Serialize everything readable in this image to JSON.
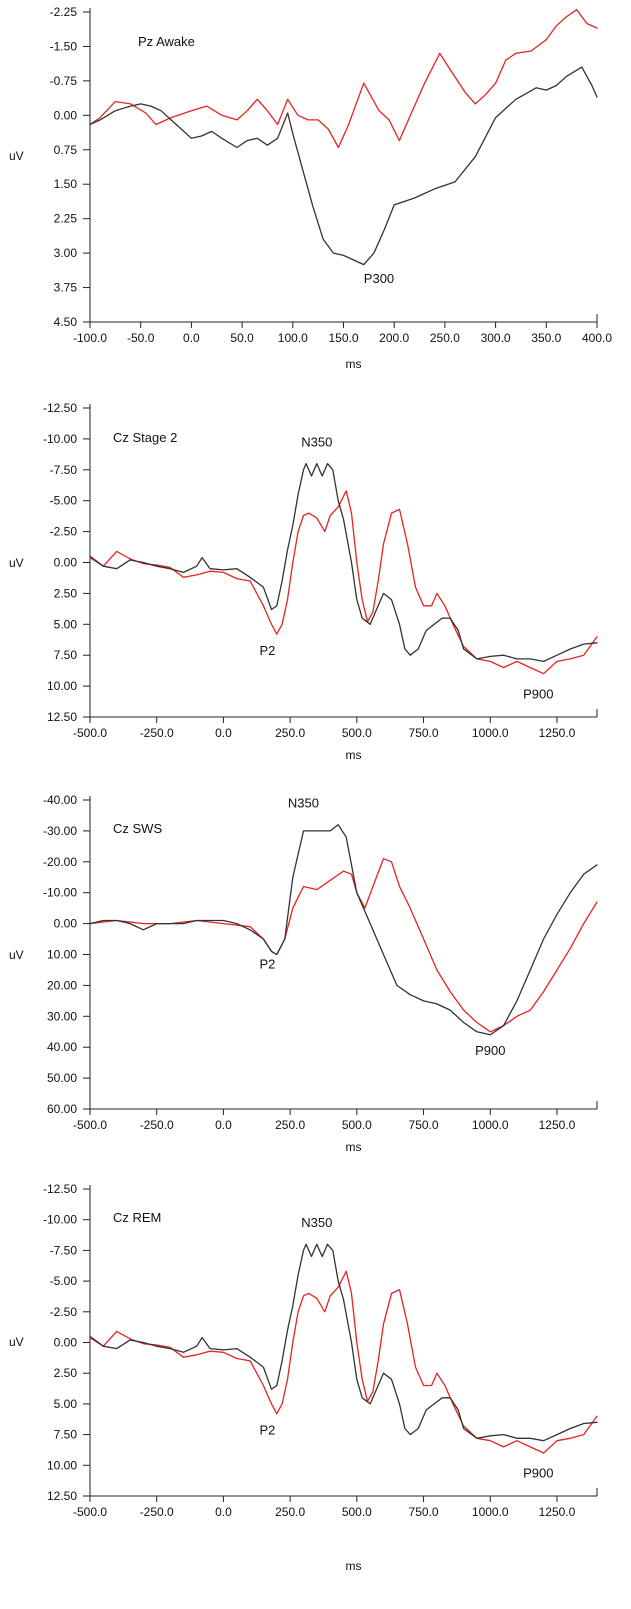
{
  "chart_data": [
    {
      "type": "line",
      "title": "Pz Awake",
      "xlabel": "ms",
      "ylabel": "uV",
      "xlim": [
        -100,
        400
      ],
      "ylim": [
        -2.25,
        4.5
      ],
      "y_inverted": true,
      "grid": false,
      "xticks": [
        -100,
        -50,
        0,
        50,
        100,
        150,
        200,
        250,
        300,
        350,
        400
      ],
      "xtick_labels": [
        "-100.0",
        "-50.0",
        "0.0",
        "50.0",
        "100.0",
        "150.0",
        "200.0",
        "250.0",
        "300.0",
        "350.0",
        "400.0"
      ],
      "yticks": [
        -2.25,
        -1.5,
        -0.75,
        0,
        0.75,
        1.5,
        2.25,
        3,
        3.75,
        4.5
      ],
      "ytick_labels": [
        "-2.25",
        "-1.50",
        "-0.75",
        "0.00",
        "0.75",
        "1.50",
        "2.25",
        "3.00",
        "3.75",
        "4.50"
      ],
      "annotations": [
        {
          "text": "P300",
          "x": 185,
          "y": 3.65
        }
      ],
      "series": [
        {
          "color": "#e8231f",
          "x": [
            -100,
            -90,
            -75,
            -60,
            -45,
            -35,
            -20,
            0,
            15,
            30,
            45,
            55,
            65,
            75,
            85,
            95,
            105,
            115,
            125,
            135,
            145,
            155,
            170,
            185,
            195,
            205,
            215,
            230,
            245,
            255,
            270,
            280,
            290,
            300,
            310,
            320,
            335,
            350,
            360,
            370,
            380,
            390,
            400
          ],
          "y": [
            0.2,
            0.05,
            -0.3,
            -0.25,
            -0.05,
            0.2,
            0.05,
            -0.1,
            -0.2,
            0.0,
            0.1,
            -0.1,
            -0.35,
            -0.1,
            0.2,
            -0.35,
            0.0,
            0.1,
            0.1,
            0.3,
            0.7,
            0.2,
            -0.7,
            -0.1,
            0.1,
            0.55,
            0.05,
            -0.7,
            -1.35,
            -1.0,
            -0.5,
            -0.25,
            -0.45,
            -0.7,
            -1.2,
            -1.35,
            -1.4,
            -1.65,
            -1.95,
            -2.15,
            -2.3,
            -2.0,
            -1.9
          ]
        },
        {
          "color": "#333333",
          "x": [
            -100,
            -90,
            -75,
            -60,
            -50,
            -40,
            -30,
            -15,
            0,
            10,
            20,
            30,
            45,
            55,
            65,
            75,
            85,
            95,
            100,
            110,
            120,
            130,
            140,
            150,
            160,
            170,
            180,
            190,
            200,
            220,
            240,
            260,
            280,
            300,
            320,
            340,
            350,
            360,
            370,
            385,
            395,
            400
          ],
          "y": [
            0.2,
            0.1,
            -0.1,
            -0.2,
            -0.25,
            -0.2,
            -0.1,
            0.2,
            0.5,
            0.45,
            0.35,
            0.5,
            0.7,
            0.55,
            0.5,
            0.65,
            0.5,
            -0.05,
            0.4,
            1.2,
            2.0,
            2.7,
            3.0,
            3.05,
            3.15,
            3.25,
            3.0,
            2.5,
            1.95,
            1.8,
            1.6,
            1.45,
            0.9,
            0.05,
            -0.35,
            -0.6,
            -0.55,
            -0.65,
            -0.85,
            -1.05,
            -0.65,
            -0.4
          ]
        }
      ]
    },
    {
      "type": "line",
      "title": "Cz Stage 2",
      "xlabel": "ms",
      "ylabel": "uV",
      "xlim": [
        -500,
        1400
      ],
      "ylim": [
        -12.5,
        12.5
      ],
      "y_inverted": true,
      "grid": false,
      "xticks": [
        -500,
        -250,
        0,
        250,
        500,
        750,
        1000,
        1250
      ],
      "xtick_labels": [
        "-500.0",
        "-250.0",
        "0.0",
        "250.0",
        "500.0",
        "750.0",
        "1000.0",
        "1250.0"
      ],
      "yticks": [
        -12.5,
        -10,
        -7.5,
        -5,
        -2.5,
        0,
        2.5,
        5,
        7.5,
        10,
        12.5
      ],
      "ytick_labels": [
        "-12.50",
        "-10.00",
        "-7.50",
        "-5.00",
        "-2.50",
        "0.00",
        "2.50",
        "5.00",
        "7.50",
        "10.00",
        "12.50"
      ],
      "annotations": [
        {
          "text": "N350",
          "x": 350,
          "y": -9.4
        },
        {
          "text": "P2",
          "x": 165,
          "y": 7.5
        },
        {
          "text": "P900",
          "x": 1180,
          "y": 11.0
        }
      ],
      "series": [
        {
          "color": "#e8231f",
          "x": [
            -500,
            -450,
            -400,
            -350,
            -300,
            -250,
            -200,
            -150,
            -100,
            -50,
            0,
            50,
            100,
            150,
            180,
            200,
            220,
            240,
            260,
            280,
            300,
            320,
            350,
            380,
            400,
            430,
            460,
            480,
            500,
            520,
            540,
            560,
            580,
            600,
            630,
            660,
            690,
            720,
            750,
            780,
            800,
            830,
            860,
            900,
            950,
            1000,
            1050,
            1100,
            1150,
            1200,
            1250,
            1300,
            1350,
            1400
          ],
          "y": [
            -0.4,
            0.3,
            -0.9,
            -0.3,
            0.1,
            0.2,
            0.4,
            1.2,
            1.0,
            0.7,
            0.8,
            1.3,
            1.5,
            3.5,
            5.0,
            5.8,
            5.0,
            3.0,
            0.0,
            -2.5,
            -3.8,
            -4.0,
            -3.6,
            -2.5,
            -3.8,
            -4.5,
            -5.8,
            -4.0,
            0.0,
            3.0,
            4.8,
            4.0,
            1.5,
            -1.5,
            -4.0,
            -4.3,
            -1.5,
            2.0,
            3.5,
            3.5,
            2.5,
            3.5,
            5.0,
            6.8,
            7.8,
            8.0,
            8.5,
            8.0,
            8.5,
            9.0,
            8.0,
            7.8,
            7.5,
            6.0
          ]
        },
        {
          "color": "#333333",
          "x": [
            -500,
            -450,
            -400,
            -350,
            -300,
            -250,
            -200,
            -150,
            -100,
            -80,
            -50,
            0,
            50,
            100,
            150,
            180,
            200,
            220,
            240,
            260,
            280,
            300,
            310,
            330,
            350,
            370,
            390,
            410,
            430,
            450,
            480,
            500,
            520,
            550,
            570,
            600,
            630,
            660,
            680,
            700,
            730,
            760,
            790,
            820,
            850,
            880,
            900,
            950,
            1000,
            1050,
            1100,
            1150,
            1200,
            1250,
            1300,
            1350,
            1400
          ],
          "y": [
            -0.5,
            0.3,
            0.5,
            -0.2,
            0.0,
            0.3,
            0.5,
            0.8,
            0.3,
            -0.4,
            0.5,
            0.6,
            0.5,
            1.2,
            2.0,
            3.8,
            3.5,
            1.5,
            -1.0,
            -3.0,
            -5.5,
            -7.5,
            -8.0,
            -7.0,
            -8.0,
            -7.0,
            -8.0,
            -7.5,
            -5.0,
            -3.5,
            0.0,
            3.0,
            4.5,
            5.0,
            4.0,
            2.5,
            3.0,
            5.0,
            7.0,
            7.5,
            7.0,
            5.5,
            5.0,
            4.5,
            4.5,
            5.5,
            7.0,
            7.8,
            7.6,
            7.5,
            7.8,
            7.8,
            8.0,
            7.5,
            7.0,
            6.6,
            6.5
          ]
        }
      ]
    },
    {
      "type": "line",
      "title": "Cz SWS",
      "xlabel": "ms",
      "ylabel": "uV",
      "xlim": [
        -500,
        1400
      ],
      "ylim": [
        -40,
        60
      ],
      "y_inverted": true,
      "grid": false,
      "xticks": [
        -500,
        -250,
        0,
        250,
        500,
        750,
        1000,
        1250
      ],
      "xtick_labels": [
        "-500.0",
        "-250.0",
        "0.0",
        "250.0",
        "500.0",
        "750.0",
        "1000.0",
        "1250.0"
      ],
      "yticks": [
        -40,
        -30,
        -20,
        -10,
        0,
        10,
        20,
        30,
        40,
        50,
        60
      ],
      "ytick_labels": [
        "-40.00",
        "-30.00",
        "-20.00",
        "-10.00",
        "0.00",
        "10.00",
        "20.00",
        "30.00",
        "40.00",
        "50.00",
        "60.00"
      ],
      "annotations": [
        {
          "text": "N350",
          "x": 300,
          "y": -37.5
        },
        {
          "text": "P2",
          "x": 165,
          "y": 14.5
        },
        {
          "text": "P900",
          "x": 1000,
          "y": 42.5
        }
      ],
      "series": [
        {
          "color": "#e8231f",
          "x": [
            -500,
            -400,
            -300,
            -200,
            -100,
            0,
            100,
            150,
            180,
            200,
            230,
            260,
            300,
            350,
            400,
            450,
            480,
            500,
            530,
            560,
            600,
            630,
            660,
            700,
            750,
            800,
            850,
            900,
            950,
            1000,
            1050,
            1100,
            1150,
            1200,
            1250,
            1300,
            1350,
            1400
          ],
          "y": [
            0,
            -1,
            0,
            0,
            -1,
            0,
            1,
            5,
            9,
            10,
            5,
            -5,
            -12,
            -11,
            -14,
            -17,
            -16,
            -10,
            -5,
            -12,
            -21,
            -20,
            -12,
            -5,
            5,
            15,
            22,
            28,
            32,
            35,
            33,
            30,
            28,
            22,
            15,
            8,
            0,
            -7
          ]
        },
        {
          "color": "#333333",
          "x": [
            -500,
            -450,
            -400,
            -350,
            -300,
            -250,
            -200,
            -150,
            -100,
            -50,
            0,
            50,
            100,
            150,
            180,
            200,
            230,
            260,
            300,
            350,
            400,
            430,
            460,
            500,
            550,
            600,
            650,
            700,
            750,
            800,
            850,
            900,
            950,
            1000,
            1050,
            1100,
            1150,
            1200,
            1250,
            1300,
            1350,
            1400
          ],
          "y": [
            0,
            -1,
            -1,
            0,
            2,
            0,
            0,
            0,
            -1,
            -1,
            -1,
            0,
            2,
            5,
            9,
            10,
            5,
            -15,
            -30,
            -30,
            -30,
            -32,
            -28,
            -10,
            0,
            10,
            20,
            23,
            25,
            26,
            28,
            32,
            35,
            36,
            33,
            25,
            15,
            5,
            -3,
            -10,
            -16,
            -19
          ]
        }
      ]
    },
    {
      "type": "line",
      "title": "Cz REM",
      "xlabel": "ms",
      "ylabel": "uV",
      "xlim": [
        -500,
        1400
      ],
      "ylim": [
        -12.5,
        12.5
      ],
      "y_inverted": true,
      "grid": false,
      "xticks": [
        -500,
        -250,
        0,
        250,
        500,
        750,
        1000,
        1250
      ],
      "xtick_labels": [
        "-500.0",
        "-250.0",
        "0.0",
        "250.0",
        "500.0",
        "750.0",
        "1000.0",
        "1250.0"
      ],
      "yticks": [
        -12.5,
        -10,
        -7.5,
        -5,
        -2.5,
        0,
        2.5,
        5,
        7.5,
        10,
        12.5
      ],
      "ytick_labels": [
        "-12.50",
        "-10.00",
        "-7.50",
        "-5.00",
        "-2.50",
        "0.00",
        "2.50",
        "5.00",
        "7.50",
        "10.00",
        "12.50"
      ],
      "annotations": [
        {
          "text": "N350",
          "x": 350,
          "y": -9.4
        },
        {
          "text": "P2",
          "x": 165,
          "y": 7.5
        },
        {
          "text": "P900",
          "x": 1180,
          "y": 11.0
        }
      ],
      "series": [
        {
          "color": "#e8231f",
          "x": [
            -500,
            -450,
            -400,
            -350,
            -300,
            -250,
            -200,
            -150,
            -100,
            -50,
            0,
            50,
            100,
            150,
            180,
            200,
            220,
            240,
            260,
            280,
            300,
            320,
            350,
            380,
            400,
            430,
            460,
            480,
            500,
            520,
            540,
            560,
            580,
            600,
            630,
            660,
            690,
            720,
            750,
            780,
            800,
            830,
            860,
            900,
            950,
            1000,
            1050,
            1100,
            1150,
            1200,
            1250,
            1300,
            1350,
            1400
          ],
          "y": [
            -0.4,
            0.3,
            -0.9,
            -0.3,
            0.1,
            0.2,
            0.4,
            1.2,
            1.0,
            0.7,
            0.8,
            1.3,
            1.5,
            3.5,
            5.0,
            5.8,
            5.0,
            3.0,
            0.0,
            -2.5,
            -3.8,
            -4.0,
            -3.6,
            -2.5,
            -3.8,
            -4.5,
            -5.8,
            -4.0,
            0.0,
            3.0,
            4.8,
            4.0,
            1.5,
            -1.5,
            -4.0,
            -4.3,
            -1.5,
            2.0,
            3.5,
            3.5,
            2.5,
            3.5,
            5.0,
            6.8,
            7.8,
            8.0,
            8.5,
            8.0,
            8.5,
            9.0,
            8.0,
            7.8,
            7.5,
            6.0
          ]
        },
        {
          "color": "#333333",
          "x": [
            -500,
            -450,
            -400,
            -350,
            -300,
            -250,
            -200,
            -150,
            -100,
            -80,
            -50,
            0,
            50,
            100,
            150,
            180,
            200,
            220,
            240,
            260,
            280,
            300,
            310,
            330,
            350,
            370,
            390,
            410,
            430,
            450,
            480,
            500,
            520,
            550,
            570,
            600,
            630,
            660,
            680,
            700,
            730,
            760,
            790,
            820,
            850,
            880,
            900,
            950,
            1000,
            1050,
            1100,
            1150,
            1200,
            1250,
            1300,
            1350,
            1400
          ],
          "y": [
            -0.5,
            0.3,
            0.5,
            -0.2,
            0.0,
            0.3,
            0.5,
            0.8,
            0.3,
            -0.4,
            0.5,
            0.6,
            0.5,
            1.2,
            2.0,
            3.8,
            3.5,
            1.5,
            -1.0,
            -3.0,
            -5.5,
            -7.5,
            -8.0,
            -7.0,
            -8.0,
            -7.0,
            -8.0,
            -7.5,
            -5.0,
            -3.5,
            0.0,
            3.0,
            4.5,
            5.0,
            4.0,
            2.5,
            3.0,
            5.0,
            7.0,
            7.5,
            7.0,
            5.5,
            5.0,
            4.5,
            4.5,
            5.5,
            7.0,
            7.8,
            7.6,
            7.5,
            7.8,
            7.8,
            8.0,
            7.5,
            7.0,
            6.6,
            6.5
          ]
        }
      ]
    }
  ]
}
